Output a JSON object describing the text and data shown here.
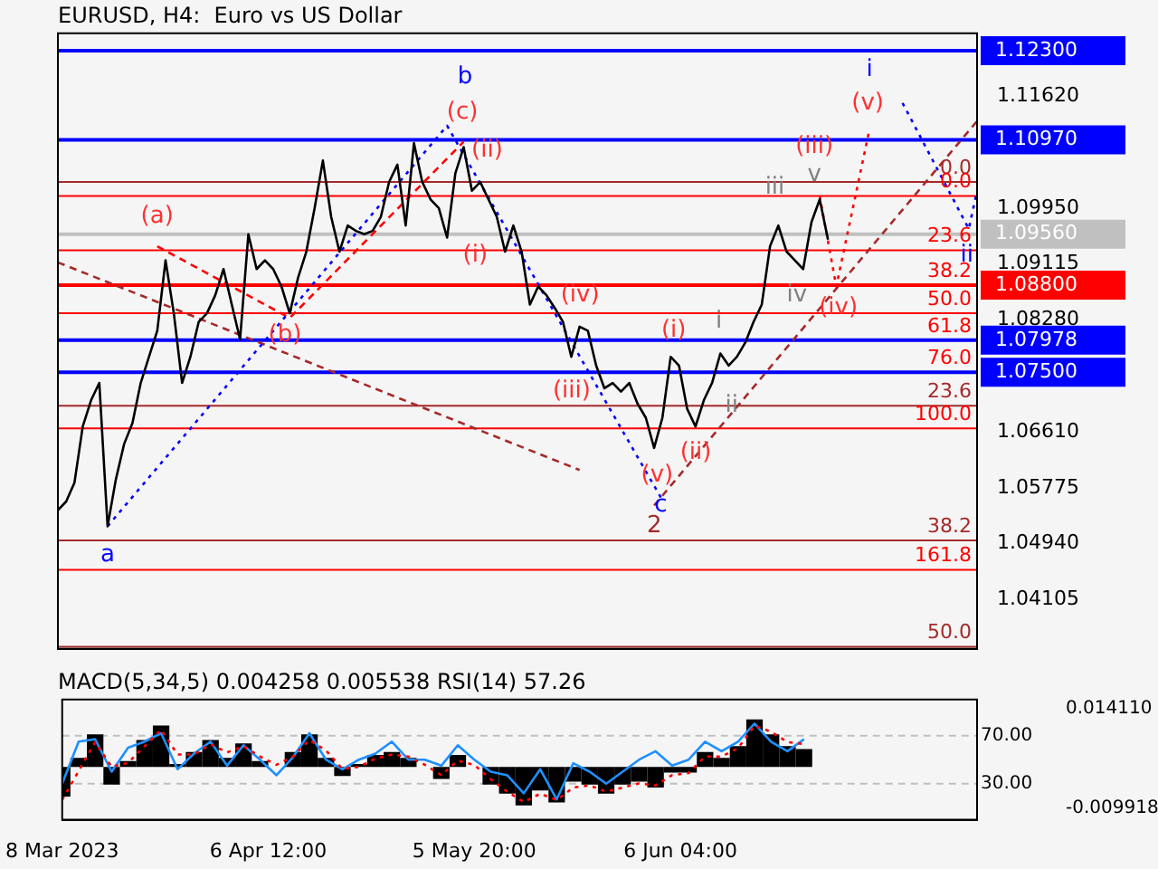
{
  "chart_data": [
    {
      "type": "line",
      "title": "EURUSD, H4:  Euro vs US Dollar",
      "categories": [
        null,
        null,
        null,
        null,
        null,
        null,
        null,
        null,
        null,
        null,
        null,
        null,
        null,
        null,
        null,
        null,
        null,
        null,
        null,
        null,
        null,
        null,
        null,
        null,
        null,
        null,
        null,
        null,
        null,
        null,
        null,
        null,
        null,
        null,
        null,
        null,
        null,
        null,
        null,
        null,
        null,
        null,
        null,
        null,
        null,
        null,
        null,
        null,
        null,
        null,
        null,
        null,
        null,
        null,
        null,
        null,
        null,
        null,
        null,
        null,
        null,
        null,
        null,
        null,
        null,
        null,
        null,
        null,
        null,
        null,
        null,
        null,
        null,
        null,
        null,
        null,
        null,
        null,
        null,
        null,
        null,
        null,
        null,
        null,
        null,
        null,
        null,
        null,
        null,
        null,
        null,
        null,
        null,
        null,
        null,
        null,
        null,
        null,
        null,
        null,
        null,
        null,
        null,
        null,
        null,
        null,
        null,
        null,
        null,
        null,
        null,
        null
      ],
      "series": [
        {
          "color": "#000000",
          "values": [
            1.0544,
            1.0557,
            1.0585,
            1.0669,
            1.0708,
            1.0734,
            1.052,
            1.059,
            1.0643,
            1.0674,
            1.0734,
            1.0773,
            1.0812,
            1.0917,
            1.0838,
            1.0734,
            1.0773,
            1.0825,
            1.0838,
            1.0865,
            1.0904,
            1.0851,
            1.0799,
            1.0956,
            1.0904,
            1.0917,
            1.0904,
            1.0878,
            1.0838,
            1.0891,
            1.093,
            1.0995,
            1.1066,
            1.0982,
            1.093,
            1.0969,
            1.0961,
            1.0956,
            1.0961,
            1.0982,
            1.1034,
            1.106,
            1.0969,
            1.1092,
            1.1034,
            1.1008,
            1.0995,
            1.0951,
            1.1047,
            1.1086,
            1.1021,
            1.1034,
            1.1008,
            1.0982,
            1.093,
            1.0969,
            1.093,
            1.0851,
            1.0878,
            1.0865,
            1.0846,
            1.0825,
            1.0773,
            1.0818,
            1.0812,
            1.076,
            1.0726,
            1.0734,
            1.0721,
            1.0734,
            1.0703,
            1.0682,
            1.0637,
            1.0682,
            1.0773,
            1.076,
            1.0695,
            1.0669,
            1.0708,
            1.0734,
            1.0778,
            1.076,
            1.0773,
            1.0794,
            1.0825,
            1.0851,
            1.0938,
            1.0969,
            1.093,
            1.0917,
            1.0904,
            1.0974,
            1.1008,
            1.0948,
            null,
            null,
            null,
            null,
            null,
            null,
            null,
            null,
            null,
            null,
            null,
            null,
            null,
            null,
            null,
            null,
            null,
            null
          ]
        },
        {
          "color": "#0000ff",
          "line_style": "dotted",
          "values": [
            null,
            null,
            null,
            null,
            null,
            null,
            1.052,
            null,
            null,
            null,
            null,
            null,
            null,
            null,
            null,
            null,
            null,
            null,
            null,
            null,
            null,
            null,
            null,
            null,
            null,
            null,
            null,
            null,
            null,
            null,
            null,
            null,
            null,
            null,
            null,
            null,
            null,
            null,
            null,
            null,
            null,
            null,
            null,
            null,
            null,
            null,
            null,
            1.1118,
            null,
            null,
            null,
            null,
            null,
            null,
            null,
            null,
            null,
            null,
            null,
            null,
            null,
            null,
            null,
            null,
            null,
            null,
            null,
            null,
            null,
            null,
            null,
            null,
            null,
            1.0559,
            null,
            null,
            null,
            null,
            null,
            null,
            null,
            null,
            null,
            null,
            null,
            null,
            null,
            null,
            null,
            null,
            null,
            null,
            null,
            null,
            null,
            null,
            null,
            null,
            null,
            null,
            null,
            null,
            null,
            null,
            null,
            null,
            null,
            null,
            null,
            null,
            null,
            null
          ]
        },
        {
          "color": "#0000ff",
          "line_style": "dotted",
          "values": [
            null,
            null,
            null,
            null,
            null,
            null,
            null,
            null,
            null,
            null,
            null,
            null,
            null,
            null,
            null,
            null,
            null,
            null,
            null,
            null,
            null,
            null,
            null,
            null,
            null,
            null,
            null,
            null,
            null,
            null,
            null,
            null,
            null,
            null,
            null,
            null,
            null,
            null,
            null,
            null,
            null,
            null,
            null,
            null,
            null,
            null,
            null,
            null,
            null,
            null,
            null,
            null,
            null,
            null,
            null,
            null,
            null,
            null,
            null,
            null,
            null,
            null,
            null,
            null,
            null,
            null,
            null,
            null,
            null,
            null,
            null,
            null,
            null,
            null,
            null,
            null,
            null,
            null,
            null,
            null,
            null,
            null,
            null,
            null,
            null,
            null,
            null,
            null,
            null,
            null,
            null,
            null,
            null,
            null,
            null,
            null,
            null,
            null,
            null,
            null,
            null,
            null,
            1.1152,
            null,
            null,
            null,
            null,
            null,
            null,
            null,
            1.0964,
            1.1021
          ]
        },
        {
          "color": "#ff0000",
          "line_style": "dashed",
          "values": [
            null,
            null,
            null,
            null,
            null,
            null,
            null,
            null,
            null,
            null,
            null,
            null,
            1.0938,
            null,
            null,
            null,
            null,
            null,
            null,
            null,
            null,
            null,
            null,
            null,
            null,
            null,
            null,
            null,
            1.0831,
            null,
            null,
            null,
            null,
            null,
            null,
            null,
            null,
            null,
            null,
            null,
            null,
            null,
            null,
            null,
            null,
            null,
            null,
            null,
            null,
            1.1094,
            null,
            null,
            null,
            null,
            null,
            null,
            null,
            null,
            null,
            null,
            null,
            null,
            null,
            null,
            null,
            null,
            null,
            null,
            null,
            null,
            null,
            null,
            null,
            null,
            null,
            null,
            null,
            null,
            null,
            null,
            null,
            null,
            null,
            null,
            null,
            null,
            null,
            null,
            null,
            null,
            null,
            null,
            null,
            null,
            null,
            null,
            null,
            null,
            null,
            null,
            null,
            null,
            null,
            null,
            null,
            null,
            null,
            null,
            null,
            null,
            null,
            null
          ]
        },
        {
          "color": "#ff0000",
          "line_style": "dotted",
          "values": [
            null,
            null,
            null,
            null,
            null,
            null,
            null,
            null,
            null,
            null,
            null,
            null,
            null,
            null,
            null,
            null,
            null,
            null,
            null,
            null,
            null,
            null,
            null,
            null,
            null,
            null,
            null,
            null,
            null,
            null,
            null,
            null,
            null,
            null,
            null,
            null,
            null,
            null,
            null,
            null,
            null,
            null,
            null,
            null,
            null,
            null,
            null,
            null,
            null,
            null,
            null,
            null,
            null,
            null,
            null,
            null,
            null,
            null,
            null,
            null,
            null,
            null,
            null,
            null,
            null,
            null,
            null,
            null,
            null,
            null,
            null,
            null,
            null,
            null,
            null,
            null,
            null,
            null,
            null,
            null,
            null,
            null,
            null,
            null,
            null,
            null,
            null,
            null,
            null,
            null,
            null,
            null,
            1.1013,
            null,
            1.0878,
            null,
            null,
            null,
            1.1112,
            null,
            null,
            null,
            null,
            null,
            null,
            null,
            null,
            null,
            null,
            null,
            null,
            null
          ]
        },
        {
          "color": "#a52a2a",
          "line_style": "dashed",
          "values": [
            1.0914,
            null,
            null,
            null,
            null,
            null,
            null,
            null,
            null,
            null,
            null,
            null,
            null,
            null,
            null,
            null,
            null,
            null,
            null,
            null,
            null,
            null,
            null,
            null,
            null,
            null,
            null,
            null,
            null,
            null,
            null,
            null,
            null,
            null,
            null,
            null,
            null,
            null,
            null,
            null,
            null,
            null,
            null,
            null,
            null,
            null,
            null,
            null,
            null,
            null,
            null,
            null,
            null,
            null,
            null,
            null,
            null,
            null,
            null,
            null,
            null,
            null,
            null,
            1.0604,
            null,
            null,
            null,
            null,
            null,
            null,
            null,
            null,
            null,
            null,
            null,
            null,
            null,
            null,
            null,
            null,
            null,
            null,
            null,
            null,
            null,
            null,
            null,
            null,
            null,
            null,
            null,
            null,
            null,
            null,
            null,
            null,
            null,
            null,
            null,
            null,
            null,
            null,
            null,
            null,
            null,
            null,
            null,
            null,
            null,
            null,
            null,
            null
          ]
        },
        {
          "color": "#a52a2a",
          "line_style": "dashed",
          "values": [
            null,
            null,
            null,
            null,
            null,
            null,
            null,
            null,
            null,
            null,
            null,
            null,
            null,
            null,
            null,
            null,
            null,
            null,
            null,
            null,
            null,
            null,
            null,
            null,
            null,
            null,
            null,
            null,
            null,
            null,
            null,
            null,
            null,
            null,
            null,
            null,
            null,
            null,
            null,
            null,
            null,
            null,
            null,
            null,
            null,
            null,
            null,
            null,
            null,
            null,
            null,
            null,
            null,
            null,
            null,
            null,
            null,
            null,
            null,
            null,
            null,
            null,
            null,
            null,
            null,
            null,
            null,
            null,
            null,
            null,
            null,
            null,
            1.0551,
            null,
            null,
            null,
            null,
            null,
            null,
            null,
            null,
            null,
            null,
            null,
            null,
            null,
            null,
            null,
            null,
            null,
            null,
            null,
            null,
            null,
            null,
            null,
            null,
            null,
            null,
            null,
            null,
            null,
            null,
            null,
            null,
            null,
            null,
            null,
            null,
            null,
            null,
            1.1125
          ]
        }
      ],
      "ylim": [
        1.0337,
        1.1256
      ],
      "yticks": [
        {
          "value": 1.123,
          "label": "1.12300"
        },
        {
          "value": 1.1162,
          "label": "1.11620"
        },
        {
          "value": 1.1097,
          "label": "1.10970"
        },
        {
          "value": 1.0995,
          "label": "1.09950"
        },
        {
          "value": 1.0956,
          "label": "1.09560"
        },
        {
          "value": 1.09115,
          "label": "1.09115"
        },
        {
          "value": 1.088,
          "label": "1.08800"
        },
        {
          "value": 1.0828,
          "label": "1.08280"
        },
        {
          "value": 1.07978,
          "label": "1.07978"
        },
        {
          "value": 1.075,
          "label": "1.07500"
        },
        {
          "value": 1.0661,
          "label": "1.06610"
        },
        {
          "value": 1.05775,
          "label": "1.05775"
        },
        {
          "value": 1.0494,
          "label": "1.04940"
        },
        {
          "value": 1.04105,
          "label": "1.04105"
        }
      ],
      "ref_lines": [
        {
          "axis": "y",
          "value": 1.1034,
          "color": "#a52a2a"
        },
        {
          "axis": "y",
          "value": 1.1013,
          "color": "#ff0000"
        },
        {
          "axis": "y",
          "value": 1.0932,
          "color": "#ff0000"
        },
        {
          "axis": "y",
          "value": 1.0838,
          "color": "#ff0000"
        },
        {
          "axis": "y",
          "value": 1.07,
          "color": "#a52a2a"
        },
        {
          "axis": "y",
          "value": 1.0666,
          "color": "#ff0000"
        },
        {
          "axis": "y",
          "value": 1.0499,
          "color": "#a52a2a"
        },
        {
          "axis": "y",
          "value": 1.0455,
          "color": "#ff0000"
        },
        {
          "axis": "y",
          "value": 1.034,
          "color": "#a52a2a"
        },
        {
          "axis": "y",
          "value": 1.123,
          "color": "#0000ff"
        },
        {
          "axis": "y",
          "value": 1.1097,
          "color": "#0000ff"
        },
        {
          "axis": "y",
          "value": 1.0956,
          "color": "#c0c0c0"
        },
        {
          "axis": "y",
          "value": 1.088,
          "color": "#ff0000"
        },
        {
          "axis": "y",
          "value": 1.07978,
          "color": "#0000ff"
        },
        {
          "axis": "y",
          "value": 1.075,
          "color": "#0000ff"
        }
      ],
      "annotations": [
        "a",
        "(a)",
        "(b)",
        "b",
        "(c)",
        "(ii)",
        "(i)",
        "(iv)",
        "(iii)",
        "(v)",
        "c",
        "2",
        "(i)",
        "(ii)",
        "i",
        "ii",
        "iii",
        "iv",
        "v",
        "(iii)",
        "(iv)",
        "(v)",
        "i",
        "ii",
        {
          "text": "0.0",
          "y": 1.1034
        },
        {
          "text": "0.0",
          "y": 1.1013
        },
        {
          "text": "23.6",
          "y": 1.0932
        },
        {
          "text": "38.2",
          "y": 1.088
        },
        {
          "text": "50.0",
          "y": 1.0838
        },
        {
          "text": "61.8",
          "y": 1.07978
        },
        {
          "text": "76.0",
          "y": 1.075
        },
        {
          "text": "23.6",
          "y": 1.07
        },
        {
          "text": "100.0",
          "y": 1.0666
        },
        {
          "text": "38.2",
          "y": 1.0499
        },
        {
          "text": "161.8",
          "y": 1.0455
        },
        {
          "text": "50.0",
          "y": 1.034
        }
      ]
    },
    {
      "type": "bar",
      "title": "MACD(5,34,5) 0.004258 0.005538 RSI(14) 57.26",
      "categories": [
        "8 Mar 2023",
        null,
        null,
        null,
        null,
        null,
        null,
        null,
        null,
        null,
        null,
        null,
        null,
        null,
        null,
        null,
        null,
        null,
        null,
        null,
        null,
        null,
        null,
        null,
        null,
        "6 Apr 12:00",
        null,
        null,
        null,
        null,
        null,
        null,
        null,
        null,
        null,
        null,
        null,
        null,
        null,
        null,
        null,
        null,
        null,
        null,
        null,
        null,
        null,
        null,
        null,
        null,
        "5 May 20:00",
        null,
        null,
        null,
        null,
        null,
        null,
        null,
        null,
        null,
        null,
        null,
        null,
        null,
        null,
        null,
        null,
        null,
        null,
        null,
        null,
        null,
        null,
        null,
        null,
        "6 Jun 04:00",
        null,
        null,
        null,
        null,
        null,
        null,
        null,
        null,
        null,
        null,
        null,
        null,
        null,
        null,
        null,
        null,
        null,
        null,
        null,
        null,
        null,
        null,
        null,
        null,
        null,
        null,
        null,
        null,
        null,
        null,
        null,
        null,
        null,
        null,
        null,
        null
      ],
      "series": [
        {
          "color": "#000000",
          "values": [
            -0.0072,
            null,
            0.0022,
            null,
            0.0079,
            null,
            -0.0043,
            null,
            0.0014,
            null,
            0.0065,
            null,
            0.01,
            null,
            0.0007,
            null,
            0.0036,
            null,
            0.0065,
            null,
            0.0022,
            null,
            0.0057,
            null,
            0.0014,
            null,
            0.0,
            null,
            0.0036,
            null,
            0.0079,
            null,
            0.0022,
            null,
            -0.0022,
            null,
            0.0007,
            null,
            0.0029,
            null,
            0.0036,
            null,
            0.0022,
            null,
            0.0,
            null,
            -0.0029,
            null,
            0.0029,
            null,
            0.0,
            null,
            -0.0043,
            null,
            -0.0065,
            null,
            -0.0093,
            null,
            -0.0057,
            null,
            -0.0086,
            null,
            -0.0036,
            null,
            -0.0043,
            null,
            -0.0065,
            null,
            -0.0043,
            null,
            -0.0036,
            null,
            -0.005,
            null,
            -0.0014,
            null,
            -0.0014,
            null,
            0.0036,
            null,
            0.0022,
            null,
            0.005,
            null,
            0.0115,
            null,
            0.0079,
            null,
            0.005,
            null,
            0.0043,
            null,
            null,
            null,
            null,
            null,
            null,
            null,
            null,
            null,
            null,
            null,
            null,
            null,
            null,
            null,
            null,
            null,
            null,
            null,
            null,
            null
          ]
        },
        {
          "type": "line",
          "color": "#ff0000",
          "line_style": "dotted",
          "values": [
            -0.008,
            null,
            -0.001,
            null,
            0.006,
            null,
            0.0,
            null,
            0.001,
            null,
            0.005,
            null,
            0.009,
            null,
            0.003,
            null,
            0.003,
            null,
            0.0055,
            null,
            0.0035,
            null,
            0.005,
            null,
            0.0025,
            null,
            0.0005,
            null,
            0.0025,
            null,
            0.0065,
            null,
            0.004,
            null,
            -0.0005,
            null,
            0.0,
            null,
            0.002,
            null,
            0.003,
            null,
            0.0025,
            null,
            0.0005,
            null,
            -0.002,
            null,
            0.0015,
            null,
            0.0005,
            null,
            -0.003,
            null,
            -0.006,
            null,
            -0.0085,
            null,
            -0.0065,
            null,
            -0.008,
            null,
            -0.005,
            null,
            -0.0045,
            null,
            -0.006,
            null,
            -0.005,
            null,
            -0.004,
            null,
            -0.0045,
            null,
            -0.002,
            null,
            -0.0015,
            null,
            0.0025,
            null,
            0.0025,
            null,
            0.0045,
            null,
            0.01,
            null,
            0.0085,
            null,
            0.006,
            null,
            0.0055,
            null,
            null,
            null,
            null,
            null,
            null,
            null,
            null,
            null,
            null,
            null,
            null,
            null,
            null,
            null,
            null,
            null,
            null,
            null,
            null,
            null
          ]
        },
        {
          "type": "line",
          "axis": "y2",
          "color": "#1e90ff",
          "values": [
            30,
            null,
            65,
            null,
            67,
            null,
            40,
            null,
            60,
            null,
            65,
            null,
            72,
            null,
            42,
            null,
            55,
            null,
            65,
            null,
            45,
            null,
            62,
            null,
            50,
            null,
            37,
            null,
            52,
            null,
            72,
            null,
            50,
            null,
            42,
            null,
            50,
            null,
            55,
            null,
            65,
            null,
            50,
            null,
            50,
            null,
            45,
            null,
            62,
            null,
            50,
            null,
            40,
            null,
            37,
            null,
            22,
            null,
            42,
            null,
            17,
            null,
            47,
            null,
            40,
            null,
            30,
            null,
            40,
            null,
            50,
            null,
            57,
            null,
            45,
            null,
            50,
            null,
            65,
            null,
            57,
            null,
            65,
            null,
            80,
            null,
            65,
            null,
            57,
            null,
            67,
            null,
            null,
            null,
            null,
            null,
            null,
            null,
            null,
            null,
            null,
            null,
            null,
            null,
            null,
            null,
            null,
            null,
            null,
            null,
            null,
            null
          ]
        }
      ],
      "ylim": [
        -0.0128,
        0.0163
      ],
      "yticks": [
        {
          "value": 0.01411,
          "label": "0.014110"
        },
        {
          "value": -0.009918,
          "label": "-0.009918"
        }
      ],
      "y2lim": [
        0,
        100
      ],
      "y2ticks": [
        {
          "value": 70,
          "label": "70.00"
        },
        {
          "value": 30,
          "label": "30.00"
        }
      ],
      "ref_lines": [
        {
          "axis": "y2",
          "value": 70,
          "color": "#c0c0c0",
          "line_style": "dashed"
        },
        {
          "axis": "y2",
          "value": 30,
          "color": "#c0c0c0",
          "line_style": "dashed"
        }
      ]
    }
  ]
}
